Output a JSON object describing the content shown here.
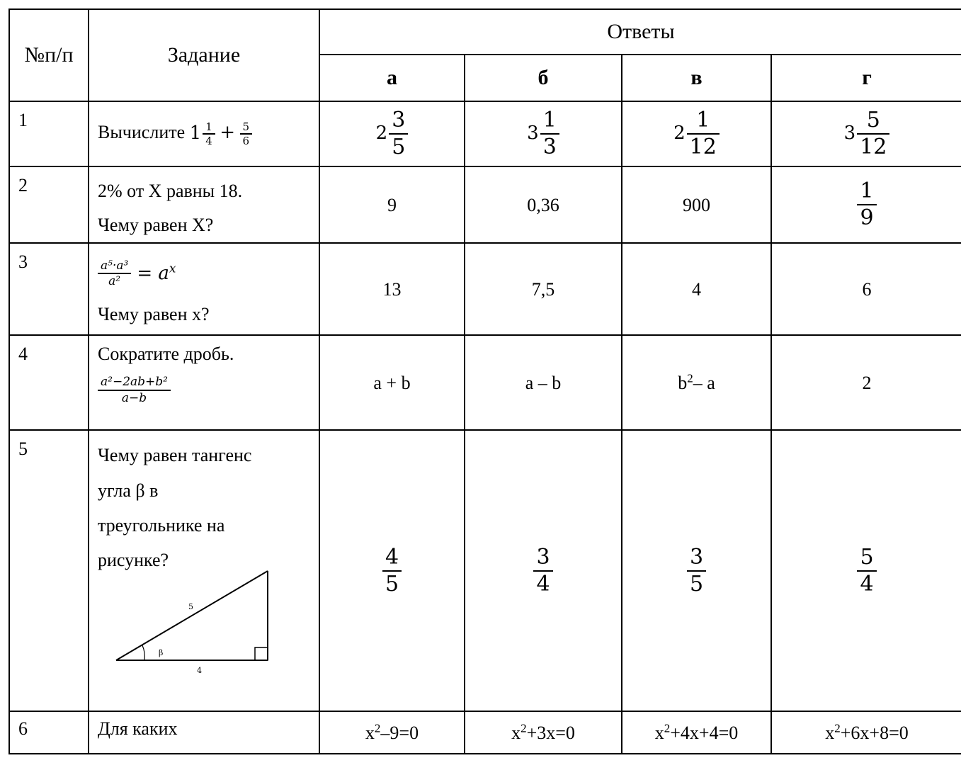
{
  "header": {
    "col_num": "№п/п",
    "col_task": "Задание",
    "col_answers": "Ответы",
    "options": [
      "а",
      "б",
      "в",
      "г"
    ]
  },
  "rows": [
    {
      "num": "1",
      "task_text": "Вычислите",
      "task_whole": "1",
      "task_frac1_n": "1",
      "task_frac1_d": "4",
      "task_plus": "+",
      "task_frac2_n": "5",
      "task_frac2_d": "6",
      "answers": [
        {
          "whole": "2",
          "n": "3",
          "d": "5"
        },
        {
          "whole": "3",
          "n": "1",
          "d": "3"
        },
        {
          "whole": "2",
          "n": "1",
          "d": "12"
        },
        {
          "whole": "3",
          "n": "5",
          "d": "12"
        }
      ]
    },
    {
      "num": "2",
      "task_line1": "2% от X равны 18.",
      "task_line2": "Чему равен X?",
      "answers": [
        "9",
        "0,36",
        "900"
      ],
      "answer4_n": "1",
      "answer4_d": "9"
    },
    {
      "num": "3",
      "task_formula_num": "a⁵·a³",
      "task_formula_den": "a²",
      "task_formula_rhs": "= a",
      "task_formula_exp": "x",
      "task_line2": "Чему равен x?",
      "answers": [
        "13",
        "7,5",
        "4",
        "6"
      ]
    },
    {
      "num": "4",
      "task_line1": "Сократите дробь.",
      "task_frac_n": "a²−2ab+b²",
      "task_frac_d": "a−b",
      "answers": [
        "a + b",
        "a – b",
        "b",
        "– a",
        "2"
      ],
      "answer3_sup": "2"
    },
    {
      "num": "5",
      "task_lines": [
        "Чему равен тангенс",
        "угла β в",
        "треугольнике на",
        "рисунке?"
      ],
      "figure": {
        "hyp": "5",
        "base": "4",
        "angle": "β"
      },
      "answers": [
        {
          "n": "4",
          "d": "5"
        },
        {
          "n": "3",
          "d": "4"
        },
        {
          "n": "3",
          "d": "5"
        },
        {
          "n": "5",
          "d": "4"
        }
      ]
    },
    {
      "num": "6",
      "task_line1": "Для каких",
      "answers": [
        {
          "pre": "x",
          "sup": "2",
          "post": "–9=0"
        },
        {
          "pre": "x",
          "sup": "2",
          "post": "+3x=0"
        },
        {
          "pre": "x",
          "sup": "2",
          "post": "+4x+4=0"
        },
        {
          "pre": "x",
          "sup": "2",
          "post": "+6x+8=0"
        }
      ]
    }
  ]
}
